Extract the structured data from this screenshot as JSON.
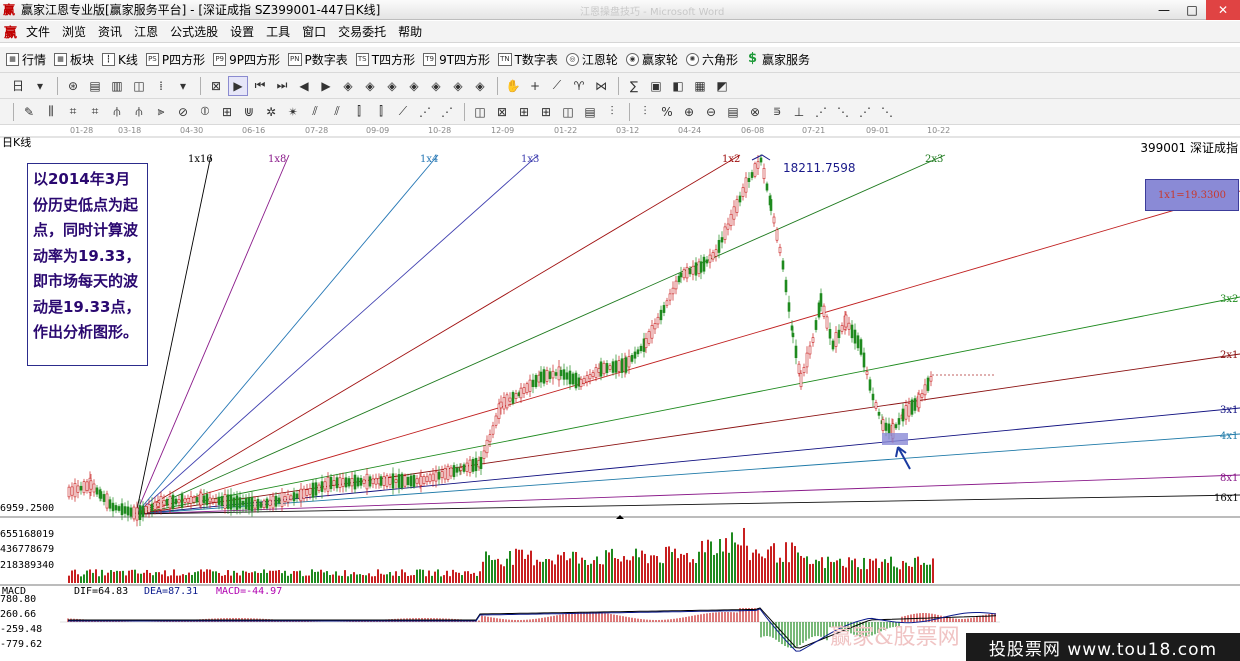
{
  "window": {
    "title": "赢家江恩专业版[赢家服务平台] - [深证成指  SZ399001-447日K线]",
    "faded_title": "江恩操盘技巧 - Microsoft Word",
    "minimize": "—",
    "maximize": "□",
    "close": "✕"
  },
  "menu": {
    "logo": "赢",
    "items": [
      "文件",
      "浏览",
      "资讯",
      "江恩",
      "公式选股",
      "设置",
      "工具",
      "窗口",
      "交易委托",
      "帮助"
    ]
  },
  "toolbar1": {
    "items": [
      {
        "label": "行情",
        "icon": "quotes-grid-icon",
        "glyph": "▦"
      },
      {
        "label": "板块",
        "icon": "sector-icon",
        "glyph": "▦"
      },
      {
        "label": "K线",
        "icon": "candlestick-icon",
        "glyph": "┇"
      },
      {
        "label": "P四方形",
        "icon": "p-square-icon",
        "glyph": "PS"
      },
      {
        "label": "9P四方形",
        "icon": "9p-square-icon",
        "glyph": "P9"
      },
      {
        "label": "P数字表",
        "icon": "p-number-table-icon",
        "glyph": "PN"
      },
      {
        "label": "T四方形",
        "icon": "t-square-icon",
        "glyph": "TS"
      },
      {
        "label": "9T四方形",
        "icon": "9t-square-icon",
        "glyph": "T9"
      },
      {
        "label": "T数字表",
        "icon": "t-number-table-icon",
        "glyph": "TN"
      },
      {
        "label": "江恩轮",
        "icon": "gann-wheel-icon",
        "glyph": "◎"
      },
      {
        "label": "赢家轮",
        "icon": "winner-wheel-icon",
        "glyph": "◉"
      },
      {
        "label": "六角形",
        "icon": "hexagon-icon",
        "glyph": "✺"
      },
      {
        "label": "赢家服务",
        "icon": "dollar-icon",
        "glyph": "$"
      }
    ]
  },
  "toolbar2": {
    "period": "日",
    "glyphs": [
      "▾",
      "⊛",
      "▤",
      "▥",
      "◫",
      "⁞",
      "▾",
      "⊠",
      "▶",
      "⏮",
      "⏭",
      "◀",
      "▶",
      "◈",
      "◈",
      "◈",
      "◈",
      "◈",
      "◈",
      "◈",
      "✋",
      "+",
      "⟋",
      "♈",
      "⋈",
      "∑",
      "▣",
      "◧",
      "▦",
      "◩"
    ]
  },
  "toolbar3": {
    "glyphs": [
      "✎",
      "⫼",
      "⌗",
      "⌗",
      "⫛",
      "⫛",
      "⫸",
      "⊘",
      "⦶",
      "⊞",
      "⋓",
      "✲",
      "✴",
      "⫽",
      "⫽",
      "⫿",
      "⫿",
      "⟋",
      "⋰",
      "⋰",
      "◫",
      "⊠",
      "⊞",
      "⊞",
      "◫",
      "▤",
      "⫶",
      "⫶",
      "%",
      "⊕",
      "⊖",
      "▤",
      "⊗",
      "⋾",
      "⊥",
      "⋰",
      "⋱",
      "⋰",
      "⋱"
    ]
  },
  "chart": {
    "period_label": "日K线",
    "code_label": "399001  深证成指",
    "date_ticks": [
      "01-28",
      "03-18",
      "04-30",
      "06-16",
      "07-28",
      "09-09",
      "10-28",
      "12-09",
      "01-22",
      "03-12",
      "04-24",
      "06-08",
      "07-21",
      "09-01",
      "10-22"
    ],
    "peak_label": "18211.7598",
    "low_label": "6959.2500",
    "fan_labels": [
      "1x16",
      "1x8",
      "1x4",
      "1x3",
      "1x2",
      "2x3",
      "1x1=19.3300",
      "3x2",
      "2x1",
      "3x1",
      "4x1",
      "8x1",
      "16x1"
    ],
    "annotation": "以2014年3月份历史低点为起点，同时计算波动率为19.33，即市场每天的波动是19.33点，作出分析图形。",
    "volume_labels": [
      "655168019",
      "436778679",
      "218389340"
    ],
    "macd_labels": [
      "780.80",
      "260.66",
      "-259.48",
      "-779.62"
    ],
    "colors": {
      "up": "#c82020",
      "down": "#1f8a1f",
      "dif": "#000000",
      "dea": "#0a1a8c"
    }
  },
  "macd": {
    "name": "MACD",
    "dif": "DIF=64.83",
    "dea": "DEA=87.31",
    "macd": "MACD=-44.97"
  },
  "watermark": {
    "text": "投股票网 www.tou18.com",
    "ghost": "赢家&股票网"
  }
}
